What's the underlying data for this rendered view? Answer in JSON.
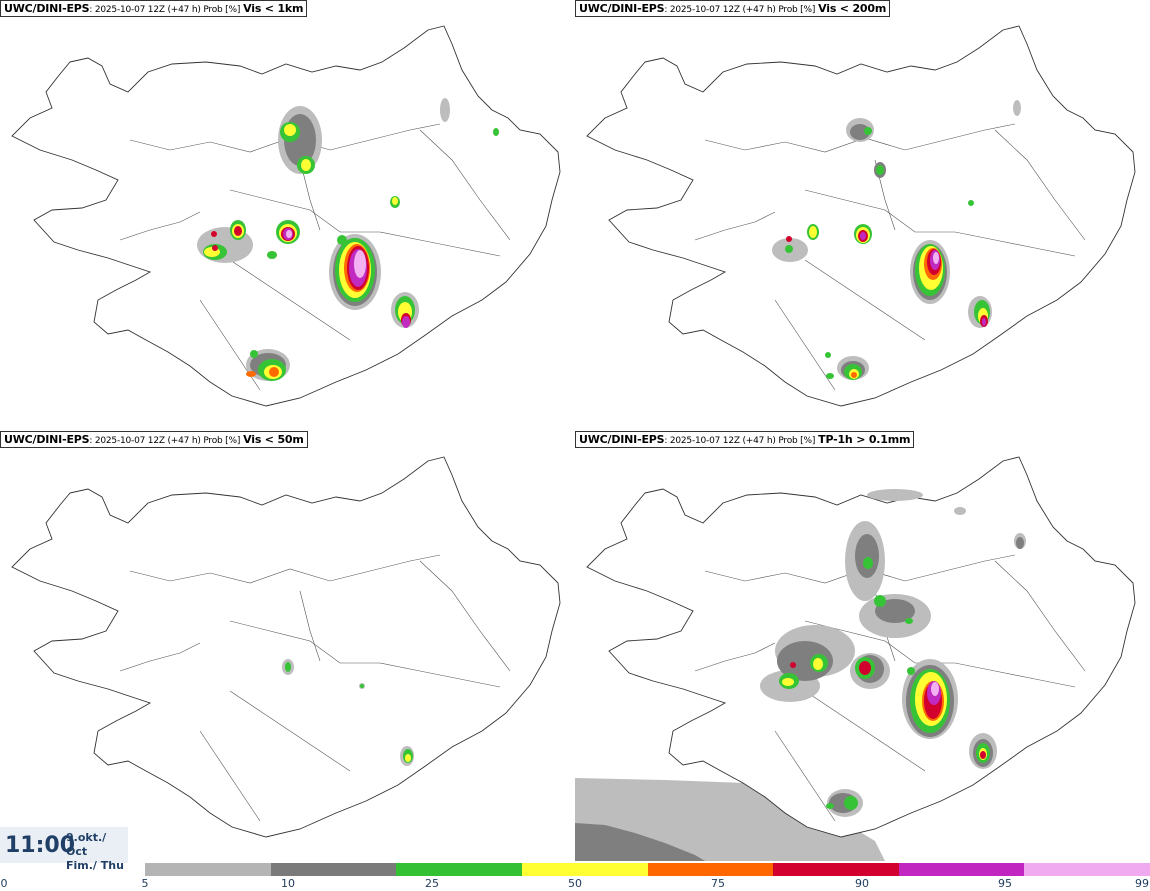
{
  "panels": [
    {
      "model": "UWC/DINI-EPS",
      "info": ": 2025-10-07 12Z (+47 h) Prob [%]",
      "variable": "Vis < 1km"
    },
    {
      "model": "UWC/DINI-EPS",
      "info": ": 2025-10-07 12Z (+47 h) Prob [%]",
      "variable": "Vis < 200m"
    },
    {
      "model": "UWC/DINI-EPS",
      "info": ": 2025-10-07 12Z (+47 h) Prob [%]",
      "variable": "Vis < 50m"
    },
    {
      "model": "UWC/DINI-EPS",
      "info": ": 2025-10-07 12Z (+47 h) Prob [%]",
      "variable": "TP-1h > 0.1mm"
    }
  ],
  "time": {
    "clock": "11:00",
    "date_line1": "9.okt./ Oct",
    "date_line2": "Fim./ Thu"
  },
  "colorbar": {
    "ticks": [
      "0",
      "5",
      "10",
      "25",
      "50",
      "75",
      "90",
      "95",
      "99"
    ],
    "colors": [
      "#b4b4b4",
      "#7a7a7a",
      "#33c133",
      "#ffff33",
      "#ff6600",
      "#d1002e",
      "#c126c1",
      "#f0aaf0"
    ]
  },
  "probability_colors": {
    "5": "#bdbdbd",
    "10": "#7f7f7f",
    "25": "#36c436",
    "50": "#ffff33",
    "75": "#ff6a00",
    "90": "#d2002c",
    "95": "#c02ac0",
    "99": "#f2b2f2"
  }
}
